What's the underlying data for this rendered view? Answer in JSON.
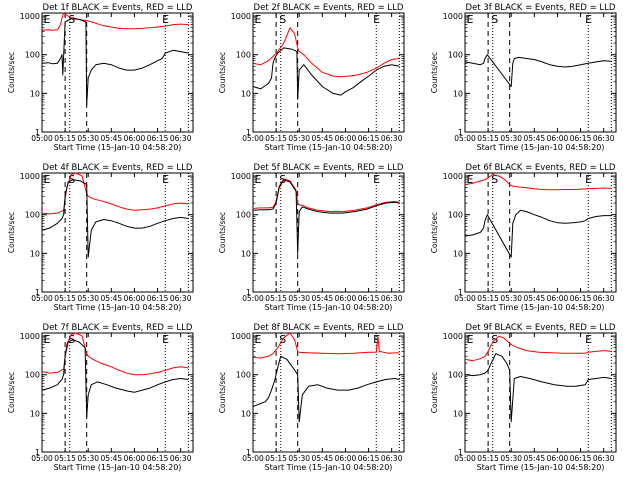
{
  "chart_data": {
    "type": "line",
    "ylabel": "Counts/sec",
    "xlabel": "Start Time (15-Jan-10 04:58:20)",
    "x_tick_labels": [
      "05:00",
      "05:15",
      "05:30",
      "05:45",
      "06:00",
      "06:15",
      "06:30"
    ],
    "y_tick_labels": [
      "1",
      "10",
      "100",
      "1000"
    ],
    "y_scale": "log",
    "xlim_minutes_after_05_00": [
      0,
      98
    ],
    "ylim": [
      1,
      1200
    ],
    "grid": false,
    "colors": {
      "events": "#000000",
      "lld": "#ff0000"
    },
    "panels": [
      {
        "title": "Det 1f BLACK = Events, RED = LLD",
        "markers": [
          {
            "label": "E",
            "x": 1
          },
          {
            "label": "S",
            "x": 17
          },
          {
            "label": "E",
            "x": 78
          }
        ],
        "dashed_x": [
          15,
          29
        ],
        "dotted_x": [
          18,
          80,
          95
        ],
        "events": {
          "x": [
            0,
            4,
            7,
            10,
            12,
            13,
            13.5,
            15,
            20,
            25,
            28.5,
            29,
            30,
            32,
            35,
            40,
            45,
            50,
            55,
            60,
            65,
            70,
            75,
            78,
            80,
            85,
            90,
            95
          ],
          "y": [
            60,
            62,
            58,
            60,
            80,
            100,
            30,
            700,
            900,
            800,
            700,
            5,
            25,
            40,
            55,
            60,
            55,
            45,
            40,
            40,
            45,
            55,
            70,
            80,
            110,
            130,
            120,
            110
          ]
        },
        "lld": {
          "x": [
            0,
            4,
            7,
            10,
            12,
            13,
            14,
            17,
            20,
            25,
            30,
            35,
            40,
            45,
            50,
            55,
            60,
            65,
            70,
            75,
            80,
            85,
            90,
            95
          ],
          "y": [
            430,
            440,
            430,
            440,
            600,
            900,
            1200,
            1000,
            850,
            800,
            750,
            650,
            560,
            520,
            480,
            470,
            470,
            480,
            500,
            520,
            550,
            600,
            620,
            600
          ]
        }
      },
      {
        "title": "Det 2f BLACK = Events, RED = LLD",
        "markers": [
          {
            "label": "E",
            "x": 1
          },
          {
            "label": "S",
            "x": 17
          },
          {
            "label": "E",
            "x": 78
          }
        ],
        "dashed_x": [
          15,
          29
        ],
        "dotted_x": [
          18,
          80,
          95
        ],
        "events": {
          "x": [
            0,
            5,
            10,
            12,
            13,
            14,
            16,
            20,
            25,
            28.5,
            29,
            30,
            33,
            38,
            45,
            52,
            57,
            60,
            65,
            70,
            75,
            80,
            85,
            90,
            95
          ],
          "y": [
            15,
            13,
            18,
            25,
            60,
            80,
            110,
            150,
            140,
            120,
            7,
            40,
            55,
            30,
            15,
            10,
            9,
            11,
            14,
            20,
            28,
            40,
            50,
            55,
            50
          ]
        },
        "lld": {
          "x": [
            0,
            5,
            10,
            13,
            16,
            20,
            24,
            27,
            29,
            30,
            33,
            38,
            45,
            52,
            57,
            62,
            68,
            74,
            80,
            85,
            90,
            95
          ],
          "y": [
            60,
            55,
            70,
            90,
            120,
            200,
            500,
            350,
            150,
            120,
            100,
            60,
            35,
            28,
            27,
            28,
            30,
            35,
            45,
            60,
            75,
            80
          ]
        }
      },
      {
        "title": "Det 3f BLACK = Events, RED = LLD",
        "markers": [
          {
            "label": "E",
            "x": 1
          },
          {
            "label": "S",
            "x": 17
          },
          {
            "label": "E",
            "x": 78
          }
        ],
        "dashed_x": [
          15,
          29
        ],
        "dotted_x": [
          18,
          80,
          95
        ],
        "events": {
          "x": [
            0,
            5,
            10,
            12,
            13,
            14.5,
            30,
            31,
            32,
            35,
            40,
            45,
            50,
            55,
            60,
            65,
            70,
            75,
            80,
            85,
            90,
            95
          ],
          "y": [
            65,
            60,
            55,
            60,
            80,
            100,
            15,
            60,
            80,
            85,
            80,
            75,
            65,
            55,
            50,
            48,
            50,
            55,
            60,
            65,
            70,
            68
          ]
        },
        "lld": {
          "x": [],
          "y": []
        }
      },
      {
        "title": "Det 4f BLACK = Events, RED = LLD",
        "markers": [
          {
            "label": "E",
            "x": 1
          },
          {
            "label": "S",
            "x": 17
          },
          {
            "label": "E",
            "x": 78
          }
        ],
        "dashed_x": [
          15,
          29
        ],
        "dotted_x": [
          18,
          80,
          95
        ],
        "events": {
          "x": [
            0,
            5,
            10,
            13,
            14,
            15,
            17,
            20,
            25,
            29,
            30,
            32,
            35,
            40,
            45,
            50,
            55,
            60,
            65,
            70,
            75,
            80,
            85,
            90,
            95
          ],
          "y": [
            40,
            45,
            60,
            80,
            100,
            300,
            700,
            800,
            750,
            600,
            8,
            40,
            65,
            75,
            70,
            60,
            50,
            45,
            45,
            50,
            60,
            70,
            80,
            85,
            80
          ]
        },
        "lld": {
          "x": [
            0,
            5,
            10,
            14,
            16,
            19,
            22,
            26,
            29,
            30,
            33,
            38,
            45,
            50,
            55,
            60,
            65,
            70,
            75,
            80,
            85,
            90,
            95
          ],
          "y": [
            110,
            105,
            110,
            130,
            500,
            1100,
            1200,
            1000,
            350,
            300,
            260,
            230,
            190,
            160,
            140,
            130,
            135,
            140,
            150,
            170,
            190,
            200,
            190
          ]
        }
      },
      {
        "title": "Det 5f BLACK = Events, RED = LLD",
        "markers": [
          {
            "label": "E",
            "x": 1
          },
          {
            "label": "S",
            "x": 17
          },
          {
            "label": "E",
            "x": 78
          }
        ],
        "dashed_x": [
          15,
          29
        ],
        "dotted_x": [
          18,
          80,
          95
        ],
        "events": {
          "x": [
            0,
            5,
            10,
            13,
            15,
            17,
            20,
            24,
            28,
            29,
            30,
            32,
            36,
            42,
            50,
            58,
            66,
            74,
            80,
            86,
            92,
            95
          ],
          "y": [
            130,
            135,
            135,
            140,
            200,
            500,
            800,
            700,
            400,
            10,
            120,
            160,
            140,
            120,
            110,
            110,
            120,
            140,
            170,
            200,
            210,
            200
          ]
        },
        "lld": {
          "x": [
            0,
            5,
            10,
            13,
            15,
            17,
            20,
            24,
            28,
            29,
            30,
            32,
            36,
            42,
            50,
            58,
            66,
            74,
            80,
            86,
            92,
            95
          ],
          "y": [
            145,
            150,
            150,
            155,
            220,
            550,
            850,
            750,
            430,
            200,
            180,
            175,
            150,
            130,
            120,
            120,
            130,
            150,
            180,
            210,
            220,
            210
          ]
        }
      },
      {
        "title": "Det 6f BLACK = Events, RED = LLD",
        "markers": [
          {
            "label": "E",
            "x": 1
          },
          {
            "label": "S",
            "x": 17
          },
          {
            "label": "E",
            "x": 78
          }
        ],
        "dashed_x": [
          15,
          29
        ],
        "dotted_x": [
          18,
          80,
          95
        ],
        "events": {
          "x": [
            0,
            5,
            10,
            12,
            13,
            14.5,
            30,
            31,
            33,
            36,
            40,
            45,
            50,
            55,
            60,
            65,
            70,
            75,
            78,
            80,
            85,
            90,
            95
          ],
          "y": [
            28,
            30,
            35,
            45,
            70,
            100,
            8,
            60,
            100,
            130,
            120,
            100,
            85,
            70,
            62,
            60,
            62,
            65,
            70,
            80,
            90,
            95,
            95
          ]
        },
        "lld": {
          "x": [
            0,
            5,
            10,
            13,
            15,
            18,
            22,
            26,
            29,
            31,
            35,
            40,
            45,
            50,
            55,
            60,
            65,
            70,
            75,
            80,
            85,
            90,
            95
          ],
          "y": [
            600,
            650,
            750,
            800,
            900,
            1100,
            1000,
            800,
            600,
            550,
            520,
            500,
            470,
            450,
            440,
            440,
            450,
            450,
            460,
            470,
            480,
            490,
            480
          ]
        }
      },
      {
        "title": "Det 7f BLACK = Events, RED = LLD",
        "markers": [
          {
            "label": "E",
            "x": 1
          },
          {
            "label": "S",
            "x": 17
          },
          {
            "label": "E",
            "x": 78
          }
        ],
        "dashed_x": [
          15,
          29
        ],
        "dotted_x": [
          18,
          80,
          95
        ],
        "events": {
          "x": [
            0,
            5,
            10,
            13,
            14,
            15,
            17,
            20,
            24,
            28,
            29,
            30,
            32,
            36,
            42,
            48,
            55,
            60,
            65,
            70,
            75,
            80,
            85,
            90,
            95
          ],
          "y": [
            40,
            45,
            55,
            75,
            100,
            300,
            700,
            800,
            700,
            500,
            8,
            30,
            55,
            65,
            55,
            45,
            38,
            35,
            40,
            45,
            55,
            65,
            75,
            80,
            75
          ]
        },
        "lld": {
          "x": [
            0,
            5,
            10,
            14,
            16,
            19,
            22,
            26,
            29,
            30,
            33,
            38,
            45,
            50,
            55,
            60,
            65,
            70,
            75,
            80,
            85,
            90,
            95
          ],
          "y": [
            120,
            110,
            115,
            140,
            600,
            1100,
            1200,
            1000,
            350,
            300,
            250,
            200,
            160,
            130,
            110,
            100,
            100,
            105,
            115,
            130,
            150,
            160,
            150
          ]
        }
      },
      {
        "title": "Det 8f BLACK = Events, RED = LLD",
        "markers": [
          {
            "label": "E",
            "x": 1
          },
          {
            "label": "S",
            "x": 17
          },
          {
            "label": "E",
            "x": 78
          }
        ],
        "dashed_x": [
          15,
          29
        ],
        "dotted_x": [
          18,
          80,
          95
        ],
        "events": {
          "x": [
            0,
            5,
            8,
            10,
            12,
            14,
            16,
            18,
            22,
            26,
            29,
            30,
            32,
            36,
            42,
            48,
            55,
            62,
            68,
            74,
            80,
            86,
            92,
            95
          ],
          "y": [
            15,
            18,
            20,
            25,
            40,
            70,
            150,
            300,
            250,
            150,
            100,
            6,
            30,
            50,
            55,
            45,
            40,
            40,
            45,
            55,
            65,
            75,
            80,
            75
          ]
        },
        "lld": {
          "x": [
            0,
            5,
            10,
            13,
            16,
            20,
            24,
            27,
            29,
            30,
            35,
            45,
            55,
            65,
            75,
            80,
            81,
            82,
            88,
            94,
            95
          ],
          "y": [
            280,
            270,
            300,
            350,
            500,
            900,
            1200,
            800,
            400,
            380,
            370,
            360,
            350,
            360,
            380,
            380,
            1000,
            400,
            360,
            370,
            360
          ]
        }
      },
      {
        "title": "Det 9f BLACK = Events, RED = LLD",
        "markers": [
          {
            "label": "E",
            "x": 1
          },
          {
            "label": "S",
            "x": 17
          },
          {
            "label": "E",
            "x": 78
          }
        ],
        "dashed_x": [
          15,
          29
        ],
        "dotted_x": [
          18,
          80,
          95
        ],
        "events": {
          "x": [
            0,
            5,
            10,
            13,
            15,
            17,
            20,
            24,
            27,
            29,
            30,
            32,
            36,
            42,
            50,
            58,
            66,
            72,
            78,
            80,
            85,
            90,
            95
          ],
          "y": [
            100,
            95,
            100,
            110,
            130,
            200,
            350,
            300,
            200,
            130,
            6,
            80,
            90,
            80,
            65,
            55,
            50,
            50,
            55,
            75,
            80,
            85,
            80
          ]
        },
        "lld": {
          "x": [
            0,
            5,
            10,
            13,
            15,
            18,
            22,
            25,
            28,
            30,
            34,
            40,
            48,
            56,
            64,
            72,
            78,
            80,
            85,
            90,
            95
          ],
          "y": [
            250,
            230,
            260,
            300,
            400,
            700,
            1000,
            900,
            700,
            600,
            500,
            420,
            380,
            370,
            360,
            360,
            360,
            380,
            400,
            420,
            400
          ]
        }
      }
    ]
  }
}
